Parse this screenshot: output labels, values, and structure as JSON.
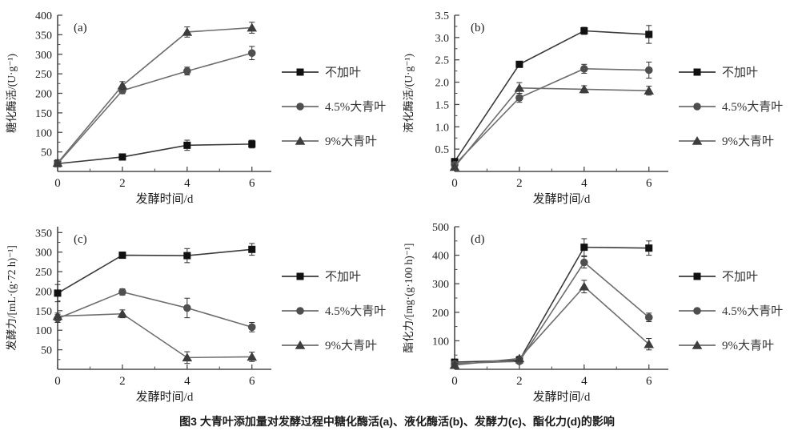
{
  "figure": {
    "caption": "图3  大青叶添加量对发酵过程中糖化酶活(a)、液化酶活(b)、发酵力(c)、酯化力(d)的影响"
  },
  "colors": {
    "axis": "#4a4a4a",
    "no_leaf_marker": "#111111",
    "no_leaf_line": "#3a3a3a",
    "leaf45_marker": "#4f4f4f",
    "leaf45_line": "#6e6e6e",
    "leaf9_marker": "#3d3d3d",
    "leaf9_line": "#6e6e6e",
    "error_bar": "#2f2f2f"
  },
  "legend": {
    "items": [
      {
        "label": "不加叶",
        "marker": "square",
        "marker_color": "#111111",
        "line_color": "#3a3a3a"
      },
      {
        "label": "4.5%大青叶",
        "marker": "circle",
        "marker_color": "#4f4f4f",
        "line_color": "#6e6e6e"
      },
      {
        "label": "9%大青叶",
        "marker": "triangle",
        "marker_color": "#3d3d3d",
        "line_color": "#6e6e6e"
      }
    ]
  },
  "chart_data": [
    {
      "type": "line",
      "panel_label": "(a)",
      "title": "糖化酶活",
      "xlabel": "发酵时间/d",
      "ylabel": "糖化酶活/(U·g⁻¹)",
      "x": [
        0,
        2,
        4,
        6
      ],
      "x_tick_labels": [
        "0",
        "2",
        "4",
        "6"
      ],
      "xlim": [
        0,
        6.6
      ],
      "ylim": [
        0,
        400
      ],
      "yticks": [
        50,
        100,
        150,
        200,
        250,
        300,
        350,
        400
      ],
      "ytick_labels": [
        "50",
        "100",
        "150",
        "200",
        "250",
        "300",
        "350",
        "400"
      ],
      "series": [
        {
          "name": "不加叶",
          "marker": "square",
          "marker_color": "#111111",
          "line_color": "#3a3a3a",
          "values": [
            20,
            37,
            67,
            70
          ],
          "errors": [
            5,
            5,
            13,
            10
          ]
        },
        {
          "name": "4.5%大青叶",
          "marker": "circle",
          "marker_color": "#4f4f4f",
          "line_color": "#6e6e6e",
          "values": [
            20,
            207,
            257,
            303
          ],
          "errors": [
            5,
            8,
            10,
            17
          ]
        },
        {
          "name": "9%大青叶",
          "marker": "triangle",
          "marker_color": "#3d3d3d",
          "line_color": "#6e6e6e",
          "values": [
            22,
            220,
            357,
            368
          ],
          "errors": [
            8,
            10,
            13,
            14
          ]
        }
      ]
    },
    {
      "type": "line",
      "panel_label": "(b)",
      "title": "液化酶活",
      "xlabel": "发酵时间/d",
      "ylabel": "液化酶活/(U·g⁻¹)",
      "x": [
        0,
        2,
        4,
        6
      ],
      "x_tick_labels": [
        "0",
        "2",
        "4",
        "6"
      ],
      "xlim": [
        0,
        6.6
      ],
      "ylim": [
        0,
        3.5
      ],
      "yticks": [
        0.5,
        1.0,
        1.5,
        2.0,
        2.5,
        3.0,
        3.5
      ],
      "ytick_labels": [
        "0.5",
        "1.0",
        "1.5",
        "2.0",
        "2.5",
        "3.0",
        "3.5"
      ],
      "series": [
        {
          "name": "不加叶",
          "marker": "square",
          "marker_color": "#111111",
          "line_color": "#3a3a3a",
          "values": [
            0.22,
            2.4,
            3.15,
            3.07
          ],
          "errors": [
            0.04,
            0.06,
            0.08,
            0.2
          ]
        },
        {
          "name": "4.5%大青叶",
          "marker": "circle",
          "marker_color": "#4f4f4f",
          "line_color": "#6e6e6e",
          "values": [
            0.15,
            1.65,
            2.3,
            2.27
          ],
          "errors": [
            0.04,
            0.1,
            0.1,
            0.18
          ]
        },
        {
          "name": "9%大青叶",
          "marker": "triangle",
          "marker_color": "#3d3d3d",
          "line_color": "#6e6e6e",
          "values": [
            0.1,
            1.87,
            1.84,
            1.81
          ],
          "errors": [
            0.04,
            0.12,
            0.08,
            0.1
          ]
        }
      ]
    },
    {
      "type": "line",
      "panel_label": "(c)",
      "title": "发酵力",
      "xlabel": "发酵时间/d",
      "ylabel": "发酵力/[mL·(g·72 h)⁻¹]",
      "x": [
        0,
        2,
        4,
        6
      ],
      "x_tick_labels": [
        "0",
        "2",
        "4",
        "6"
      ],
      "xlim": [
        0,
        6.6
      ],
      "ylim": [
        0,
        365
      ],
      "yticks": [
        50,
        100,
        150,
        200,
        250,
        300,
        350
      ],
      "ytick_labels": [
        "50",
        "100",
        "150",
        "200",
        "250",
        "300",
        "350"
      ],
      "series": [
        {
          "name": "不加叶",
          "marker": "square",
          "marker_color": "#111111",
          "line_color": "#3a3a3a",
          "values": [
            195,
            292,
            291,
            307
          ],
          "errors": [
            22,
            8,
            18,
            15
          ]
        },
        {
          "name": "4.5%大青叶",
          "marker": "circle",
          "marker_color": "#4f4f4f",
          "line_color": "#6e6e6e",
          "values": [
            130,
            198,
            157,
            108
          ],
          "errors": [
            10,
            8,
            25,
            12
          ]
        },
        {
          "name": "9%大青叶",
          "marker": "triangle",
          "marker_color": "#3d3d3d",
          "line_color": "#6e6e6e",
          "values": [
            136,
            142,
            30,
            32
          ],
          "errors": [
            8,
            10,
            15,
            12
          ]
        }
      ]
    },
    {
      "type": "line",
      "panel_label": "(d)",
      "title": "酯化力",
      "xlabel": "发酵时间/d",
      "ylabel": "酯化力/[mg·(g·100 h)⁻¹]",
      "x": [
        0,
        2,
        4,
        6
      ],
      "x_tick_labels": [
        "0",
        "2",
        "4",
        "6"
      ],
      "xlim": [
        0,
        6.6
      ],
      "ylim": [
        0,
        500
      ],
      "yticks": [
        100,
        200,
        300,
        400,
        500
      ],
      "ytick_labels": [
        "100",
        "200",
        "300",
        "400",
        "500"
      ],
      "series": [
        {
          "name": "不加叶",
          "marker": "square",
          "marker_color": "#111111",
          "line_color": "#3a3a3a",
          "values": [
            25,
            32,
            428,
            425
          ],
          "errors": [
            8,
            6,
            30,
            25
          ]
        },
        {
          "name": "4.5%大青叶",
          "marker": "circle",
          "marker_color": "#4f4f4f",
          "line_color": "#6e6e6e",
          "values": [
            20,
            28,
            375,
            182
          ],
          "errors": [
            5,
            6,
            20,
            15
          ]
        },
        {
          "name": "9%大青叶",
          "marker": "triangle",
          "marker_color": "#3d3d3d",
          "line_color": "#6e6e6e",
          "values": [
            15,
            38,
            290,
            88
          ],
          "errors": [
            5,
            8,
            22,
            20
          ]
        }
      ]
    }
  ]
}
